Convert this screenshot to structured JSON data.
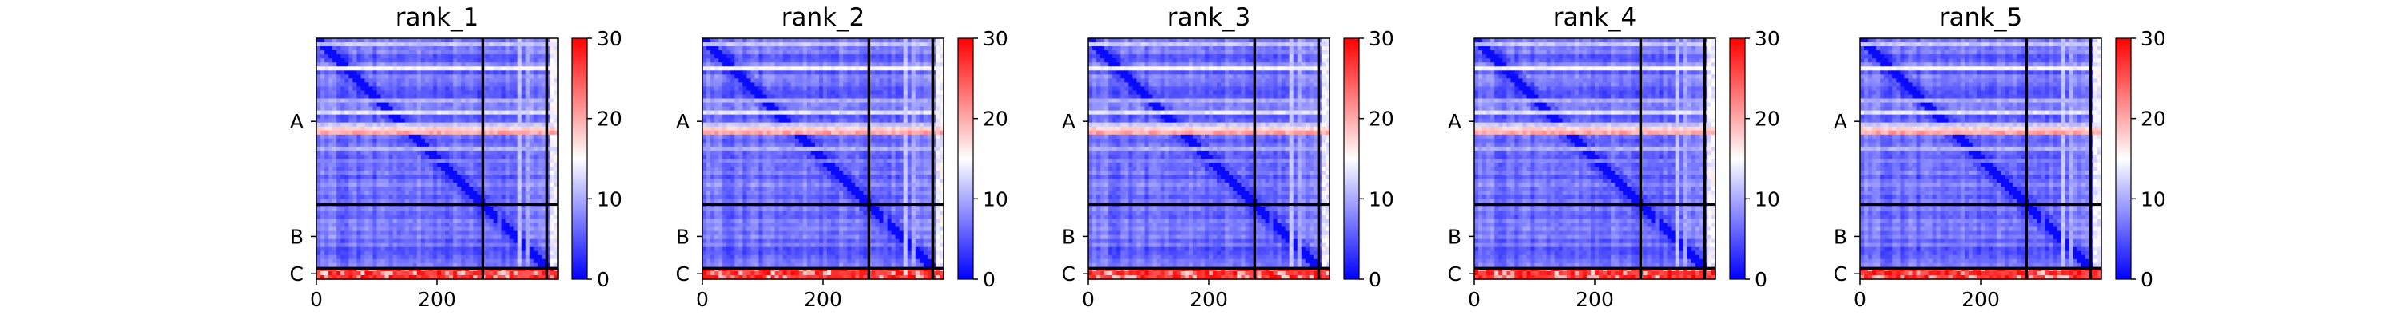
{
  "chart_data": [
    {
      "type": "heatmap",
      "title": "rank_1",
      "x_ticks": [
        0,
        200
      ],
      "x_range": [
        0,
        400
      ],
      "chain_labels": [
        "A",
        "B",
        "C"
      ],
      "chain_boundaries": [
        0,
        276,
        382,
        400
      ],
      "colorbar": {
        "ticks": [
          0,
          10,
          20,
          30
        ],
        "range": [
          0,
          30
        ],
        "colormap": "bwr"
      }
    },
    {
      "type": "heatmap",
      "title": "rank_2",
      "x_ticks": [
        0,
        200
      ],
      "x_range": [
        0,
        400
      ],
      "chain_labels": [
        "A",
        "B",
        "C"
      ],
      "chain_boundaries": [
        0,
        276,
        382,
        400
      ],
      "colorbar": {
        "ticks": [
          0,
          10,
          20,
          30
        ],
        "range": [
          0,
          30
        ],
        "colormap": "bwr"
      }
    },
    {
      "type": "heatmap",
      "title": "rank_3",
      "x_ticks": [
        0,
        200
      ],
      "x_range": [
        0,
        400
      ],
      "chain_labels": [
        "A",
        "B",
        "C"
      ],
      "chain_boundaries": [
        0,
        276,
        382,
        400
      ],
      "colorbar": {
        "ticks": [
          0,
          10,
          20,
          30
        ],
        "range": [
          0,
          30
        ],
        "colormap": "bwr"
      }
    },
    {
      "type": "heatmap",
      "title": "rank_4",
      "x_ticks": [
        0,
        200
      ],
      "x_range": [
        0,
        400
      ],
      "chain_labels": [
        "A",
        "B",
        "C"
      ],
      "chain_boundaries": [
        0,
        276,
        382,
        400
      ],
      "colorbar": {
        "ticks": [
          0,
          10,
          20,
          30
        ],
        "range": [
          0,
          30
        ],
        "colormap": "bwr"
      }
    },
    {
      "type": "heatmap",
      "title": "rank_5",
      "x_ticks": [
        0,
        200
      ],
      "x_range": [
        0,
        400
      ],
      "chain_labels": [
        "A",
        "B",
        "C"
      ],
      "chain_boundaries": [
        0,
        276,
        382,
        400
      ],
      "colorbar": {
        "ticks": [
          0,
          10,
          20,
          30
        ],
        "range": [
          0,
          30
        ],
        "colormap": "bwr"
      }
    }
  ],
  "colors": {
    "low": "#0000ff",
    "mid": "#ffffff",
    "high": "#ff0000",
    "divider": "#000000"
  }
}
